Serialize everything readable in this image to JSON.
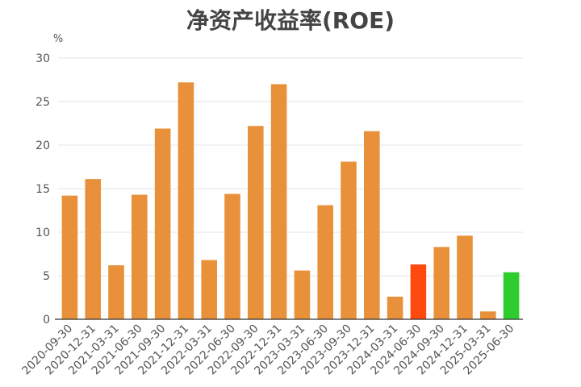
{
  "chart_data": {
    "type": "bar",
    "title": "净资产收益率(ROE)",
    "ylabel": "%",
    "xlabel": "",
    "ylim": [
      0,
      30
    ],
    "yticks": [
      0,
      5,
      10,
      15,
      20,
      25,
      30
    ],
    "grid": true,
    "categories": [
      "2020-09-30",
      "2020-12-31",
      "2021-03-31",
      "2021-06-30",
      "2021-09-30",
      "2021-12-31",
      "2022-03-31",
      "2022-06-30",
      "2022-09-30",
      "2022-12-31",
      "2023-03-31",
      "2023-06-30",
      "2023-09-30",
      "2023-12-31",
      "2024-03-31",
      "2024-06-30",
      "2024-09-30",
      "2024-12-31",
      "2025-03-31",
      "2025-06-30"
    ],
    "values": [
      14.2,
      16.1,
      6.2,
      14.3,
      21.9,
      27.2,
      6.8,
      14.4,
      22.2,
      27.0,
      5.6,
      13.1,
      18.1,
      21.6,
      2.6,
      6.3,
      8.3,
      9.6,
      0.9,
      5.4
    ],
    "colors": [
      "#E8913A",
      "#E8913A",
      "#E8913A",
      "#E8913A",
      "#E8913A",
      "#E8913A",
      "#E8913A",
      "#E8913A",
      "#E8913A",
      "#E8913A",
      "#E8913A",
      "#E8913A",
      "#E8913A",
      "#E8913A",
      "#E8913A",
      "#FF4A0F",
      "#E8913A",
      "#E8913A",
      "#E8913A",
      "#2ECC2E"
    ],
    "grid_color": "#E3E6EA",
    "axis_color": "#333333"
  }
}
